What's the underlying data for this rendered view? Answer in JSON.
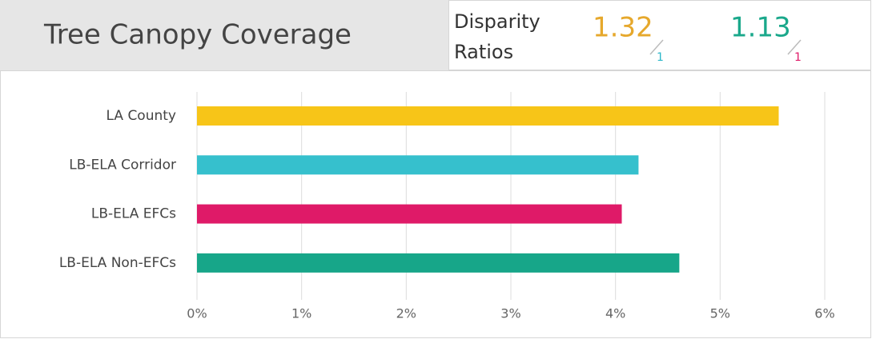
{
  "chart_data": {
    "type": "hbar",
    "title": "Tree Canopy Coverage",
    "categories": [
      "LA County",
      "LB-ELA Corridor",
      "LB-ELA EFCs",
      "LB-ELA Non-EFCs"
    ],
    "values": [
      5.56,
      4.22,
      4.06,
      4.61
    ],
    "colors": [
      "#f7c518",
      "#36c0cd",
      "#df1a68",
      "#17a689"
    ],
    "xlim": [
      0,
      6
    ],
    "xticks": [
      {
        "value": 0,
        "label": "0%"
      },
      {
        "value": 1,
        "label": "1%"
      },
      {
        "value": 2,
        "label": "2%"
      },
      {
        "value": 3,
        "label": "3%"
      },
      {
        "value": 4,
        "label": "4%"
      },
      {
        "value": 5,
        "label": "5%"
      },
      {
        "value": 6,
        "label": "6%"
      }
    ],
    "grid": true
  },
  "disparity": {
    "label": [
      "Disparity",
      "Ratios"
    ],
    "ratios": [
      {
        "value": 1.32,
        "color": "#e6a82c",
        "denominator": 1,
        "denominator_color": "#2bb7c9"
      },
      {
        "value": 1.13,
        "color": "#1aa88b",
        "denominator": 1,
        "denominator_color": "#df1a68"
      }
    ]
  }
}
